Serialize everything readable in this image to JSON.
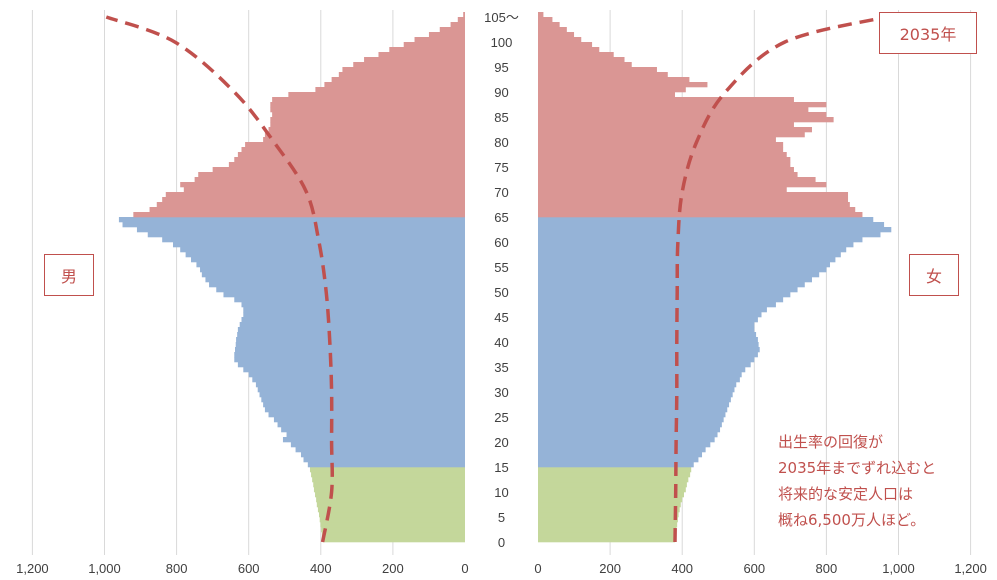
{
  "labels": {
    "year": "2035年",
    "male": "男",
    "female": "女",
    "note": [
      "出生率の回復が",
      "2035年までずれ込むと",
      "将来的な安定人口は",
      "概ね6,500万人ほど。"
    ]
  },
  "colors": {
    "young": "#c4d79b",
    "working": "#95b3d7",
    "elderly": "#da9694",
    "projection": "#c0504d",
    "grid": "#d9d9d9",
    "accent": "#c0504d"
  },
  "chart_data": {
    "type": "bar",
    "orientation": "horizontal",
    "subtype": "population-pyramid",
    "y_axis_labels": [
      "0",
      "5",
      "10",
      "15",
      "20",
      "25",
      "30",
      "35",
      "40",
      "45",
      "50",
      "55",
      "60",
      "65",
      "70",
      "75",
      "80",
      "85",
      "90",
      "95",
      "100",
      "105〜"
    ],
    "x_axis_left_ticks": [
      "1,200",
      "1,000",
      "800",
      "600",
      "400",
      "200",
      "0"
    ],
    "x_axis_right_ticks": [
      "0",
      "200",
      "400",
      "600",
      "800",
      "1,000",
      "1,200"
    ],
    "xlim": [
      0,
      1200
    ],
    "age_groups": {
      "young": [
        0,
        14
      ],
      "working": [
        15,
        64
      ],
      "elderly": [
        65,
        105
      ]
    },
    "ages": [
      0,
      1,
      2,
      3,
      4,
      5,
      6,
      7,
      8,
      9,
      10,
      11,
      12,
      13,
      14,
      15,
      16,
      17,
      18,
      19,
      20,
      21,
      22,
      23,
      24,
      25,
      26,
      27,
      28,
      29,
      30,
      31,
      32,
      33,
      34,
      35,
      36,
      37,
      38,
      39,
      40,
      41,
      42,
      43,
      44,
      45,
      46,
      47,
      48,
      49,
      50,
      51,
      52,
      53,
      54,
      55,
      56,
      57,
      58,
      59,
      60,
      61,
      62,
      63,
      64,
      65,
      66,
      67,
      68,
      69,
      70,
      71,
      72,
      73,
      74,
      75,
      76,
      77,
      78,
      79,
      80,
      81,
      82,
      83,
      84,
      85,
      86,
      87,
      88,
      89,
      90,
      91,
      92,
      93,
      94,
      95,
      96,
      97,
      98,
      99,
      100,
      101,
      102,
      103,
      104,
      105
    ],
    "series": [
      {
        "name": "男",
        "values": [
          395,
          397,
          399,
          401,
          403,
          405,
          408,
          411,
          413,
          416,
          419,
          421,
          424,
          427,
          430,
          436,
          448,
          455,
          470,
          483,
          505,
          495,
          510,
          520,
          530,
          545,
          555,
          560,
          565,
          570,
          575,
          580,
          590,
          600,
          615,
          630,
          640,
          640,
          638,
          636,
          635,
          632,
          630,
          625,
          620,
          615,
          615,
          620,
          640,
          670,
          690,
          710,
          720,
          730,
          735,
          745,
          760,
          775,
          790,
          810,
          840,
          880,
          910,
          950,
          960,
          920,
          875,
          855,
          840,
          830,
          780,
          790,
          750,
          740,
          700,
          655,
          640,
          630,
          620,
          610,
          560,
          555,
          545,
          540,
          540,
          535,
          540,
          540,
          535,
          490,
          415,
          390,
          370,
          350,
          340,
          310,
          280,
          240,
          210,
          170,
          140,
          100,
          70,
          40,
          20,
          5
        ]
      },
      {
        "name": "女",
        "values": [
          380,
          382,
          384,
          386,
          388,
          390,
          393,
          396,
          400,
          405,
          410,
          413,
          417,
          422,
          425,
          432,
          445,
          455,
          465,
          478,
          490,
          498,
          505,
          510,
          515,
          520,
          525,
          530,
          535,
          540,
          545,
          550,
          560,
          565,
          575,
          590,
          600,
          610,
          615,
          612,
          610,
          605,
          600,
          600,
          610,
          620,
          635,
          660,
          680,
          700,
          720,
          740,
          760,
          780,
          800,
          810,
          825,
          840,
          855,
          875,
          900,
          950,
          980,
          960,
          930,
          900,
          880,
          865,
          860,
          860,
          690,
          800,
          770,
          720,
          710,
          700,
          700,
          690,
          680,
          680,
          660,
          740,
          760,
          710,
          820,
          800,
          750,
          800,
          710,
          380,
          410,
          470,
          420,
          360,
          330,
          260,
          240,
          210,
          170,
          150,
          120,
          100,
          80,
          60,
          40,
          15
        ]
      },
      {
        "name": "",
        "type": "dashed-line",
        "values_male": [
          395,
          370,
          370,
          370,
          375,
          385,
          405,
          440,
          530,
          640,
          805,
          995
        ],
        "values_female": [
          380,
          382,
          383,
          385,
          385,
          386,
          388,
          400,
          440,
          520,
          685,
          965
        ],
        "at_ages": [
          0,
          10,
          20,
          30,
          40,
          50,
          60,
          70,
          80,
          90,
          100,
          105
        ]
      }
    ]
  }
}
